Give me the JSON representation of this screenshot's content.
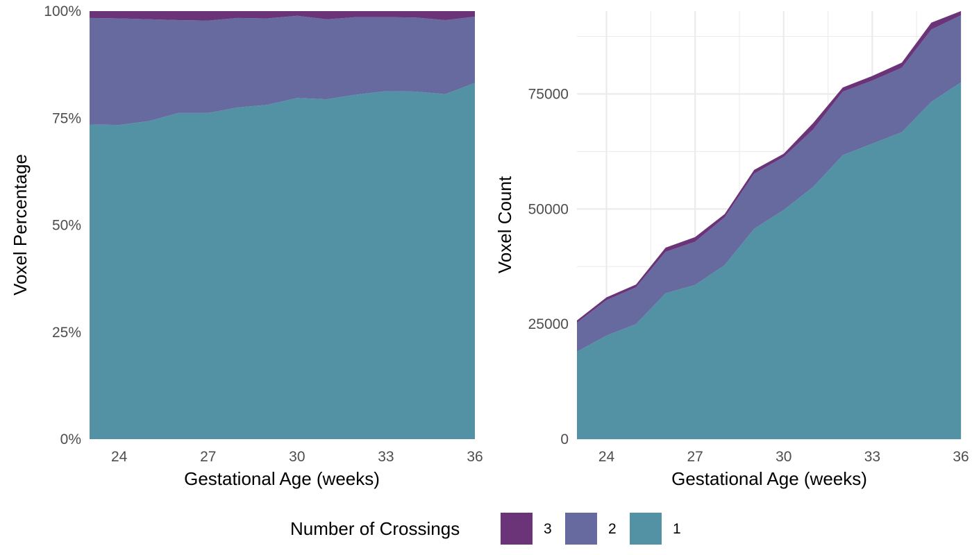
{
  "chart_data": [
    {
      "type": "area",
      "stacked": true,
      "normalized": true,
      "title": "",
      "xlabel": "Gestational Age (weeks)",
      "ylabel": "Voxel Percentage",
      "xlim": [
        23,
        36
      ],
      "ylim": [
        0,
        1
      ],
      "grid": false,
      "x": [
        23,
        24,
        25,
        26,
        27,
        28,
        29,
        30,
        31,
        32,
        33,
        34,
        35,
        36
      ],
      "xticks": [
        24,
        27,
        30,
        33,
        36
      ],
      "xtick_labels": [
        "24",
        "27",
        "30",
        "33",
        "36"
      ],
      "yticks": [
        0,
        0.25,
        0.5,
        0.75,
        1
      ],
      "ytick_labels": [
        "0%",
        "25%",
        "50%",
        "75%",
        "100%"
      ],
      "series": [
        {
          "name": "1",
          "values": [
            0.735,
            0.734,
            0.743,
            0.762,
            0.762,
            0.775,
            0.781,
            0.797,
            0.794,
            0.805,
            0.813,
            0.812,
            0.806,
            0.832
          ]
        },
        {
          "name": "2",
          "values": [
            0.249,
            0.249,
            0.238,
            0.217,
            0.216,
            0.209,
            0.202,
            0.192,
            0.187,
            0.181,
            0.173,
            0.173,
            0.173,
            0.155
          ]
        },
        {
          "name": "3",
          "values": [
            0.016,
            0.017,
            0.019,
            0.021,
            0.022,
            0.016,
            0.017,
            0.011,
            0.019,
            0.014,
            0.014,
            0.015,
            0.021,
            0.013
          ]
        }
      ]
    },
    {
      "type": "area",
      "stacked": true,
      "normalized": false,
      "title": "",
      "xlabel": "Gestational Age (weeks)",
      "ylabel": "Voxel Count",
      "xlim": [
        23,
        36
      ],
      "ylim": [
        0,
        93000
      ],
      "grid": true,
      "x": [
        23,
        24,
        25,
        26,
        27,
        28,
        29,
        30,
        31,
        32,
        33,
        34,
        35,
        36
      ],
      "xticks": [
        24,
        27,
        30,
        33,
        36
      ],
      "xtick_labels": [
        "24",
        "27",
        "30",
        "33",
        "36"
      ],
      "yticks": [
        0,
        25000,
        50000,
        75000
      ],
      "ytick_labels": [
        "0",
        "25000",
        "50000",
        "75000"
      ],
      "series": [
        {
          "name": "1",
          "values": [
            19000,
            22500,
            25000,
            31700,
            33500,
            37800,
            45700,
            49800,
            54800,
            61700,
            64200,
            66700,
            73300,
            77500
          ]
        },
        {
          "name": "2",
          "values": [
            6300,
            7700,
            8000,
            9000,
            9400,
            10400,
            12000,
            11500,
            12500,
            13800,
            13700,
            14000,
            15700,
            14600
          ]
        },
        {
          "name": "3",
          "values": [
            500,
            600,
            600,
            900,
            1000,
            700,
            800,
            700,
            1400,
            900,
            1000,
            1100,
            1500,
            1200
          ]
        }
      ]
    }
  ],
  "legend": {
    "title": "Number of Crossings",
    "placement": "bottom",
    "entries": [
      {
        "label": "3",
        "color": "#6b3378"
      },
      {
        "label": "2",
        "color": "#666a9f"
      },
      {
        "label": "1",
        "color": "#5292a4"
      }
    ]
  },
  "colors": {
    "1": "#5292a4",
    "2": "#666a9f",
    "3": "#6b3378",
    "grid": "#ebebeb"
  }
}
